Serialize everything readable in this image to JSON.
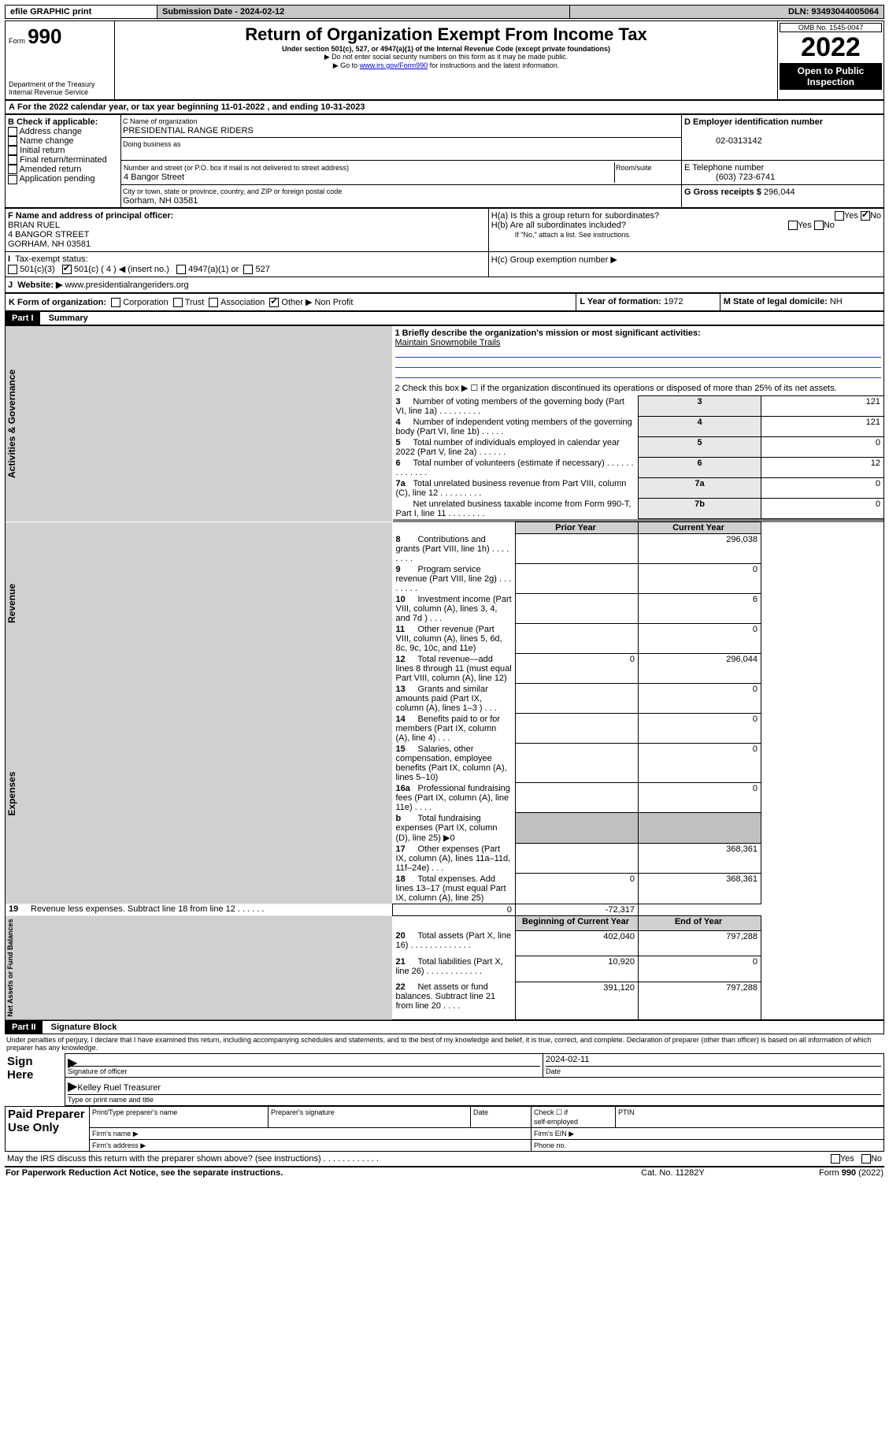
{
  "topbar": {
    "efile": "efile GRAPHIC print",
    "sub_label": "Submission Date - 2024-02-12",
    "dln": "DLN: 93493044005064"
  },
  "header": {
    "form": "Form",
    "formno": "990",
    "dept": "Department of the Treasury",
    "irs": "Internal Revenue Service",
    "title": "Return of Organization Exempt From Income Tax",
    "sub1": "Under section 501(c), 527, or 4947(a)(1) of the Internal Revenue Code (except private foundations)",
    "sub2": "▶ Do not enter social security numbers on this form as it may be made public.",
    "sub3_pre": "▶ Go to ",
    "sub3_link": "www.irs.gov/Form990",
    "sub3_post": " for instructions and the latest information.",
    "omb": "OMB No. 1545-0047",
    "year": "2022",
    "open": "Open to Public Inspection"
  },
  "A": {
    "text": "For the 2022 calendar year, or tax year beginning ",
    "begin": "11-01-2022",
    "mid": " , and ending ",
    "end": "10-31-2023"
  },
  "B": {
    "title": "B Check if applicable:",
    "opts": [
      "Address change",
      "Name change",
      "Initial return",
      "Final return/terminated",
      "Amended return",
      "Application pending"
    ]
  },
  "C": {
    "label": "C Name of organization",
    "name": "PRESIDENTIAL RANGE RIDERS",
    "dba": "Doing business as",
    "street_label": "Number and street (or P.O. box if mail is not delivered to street address)",
    "room": "Room/suite",
    "street": "4 Bangor Street",
    "city_label": "City or town, state or province, country, and ZIP or foreign postal code",
    "city": "Gorham, NH  03581"
  },
  "D": {
    "label": "D Employer identification number",
    "val": "02-0313142"
  },
  "E": {
    "label": "E Telephone number",
    "val": "(603) 723-6741"
  },
  "G": {
    "label": "G Gross receipts $",
    "val": "296,044"
  },
  "F": {
    "label": "F Name and address of principal officer:",
    "l1": "BRIAN RUEL",
    "l2": "4 BANGOR STREET",
    "l3": "GORHAM, NH  03581"
  },
  "H": {
    "a": "H(a)  Is this a group return for subordinates?",
    "b": "H(b)  Are all subordinates included?",
    "note": "If \"No,\" attach a list. See instructions.",
    "c": "H(c)  Group exemption number ▶",
    "yes": "Yes",
    "no": "No"
  },
  "I": {
    "label": "Tax-exempt status:",
    "o1": "501(c)(3)",
    "o2": "501(c) ( 4 ) ◀ (insert no.)",
    "o3": "4947(a)(1) or",
    "o4": "527"
  },
  "J": {
    "label": "Website: ▶",
    "val": "www.presidentialrangeriders.org"
  },
  "K": {
    "label": "K Form of organization:",
    "o1": "Corporation",
    "o2": "Trust",
    "o3": "Association",
    "o4": "Other ▶",
    "val": "Non Profit"
  },
  "L": {
    "label": "L Year of formation:",
    "val": "1972"
  },
  "M": {
    "label": "M State of legal domicile:",
    "val": "NH"
  },
  "part1": {
    "title": "Part I",
    "sub": "Summary"
  },
  "s1": {
    "q1": "1   Briefly describe the organization's mission or most significant activities:",
    "q1v": "Maintain Snowmobile Trails",
    "q2": "2   Check this box ▶ ☐  if the organization discontinued its operations or disposed of more than 25% of its net assets.",
    "rows": [
      {
        "n": "3",
        "t": "Number of voting members of the governing body (Part VI, line 1a)   .    .    .    .    .    .    .    .    .",
        "rn": "3",
        "v": "121"
      },
      {
        "n": "4",
        "t": "Number of independent voting members of the governing body (Part VI, line 1b)    .    .    .    .    .",
        "rn": "4",
        "v": "121"
      },
      {
        "n": "5",
        "t": "Total number of individuals employed in calendar year 2022 (Part V, line 2a)    .    .    .    .    .    .",
        "rn": "5",
        "v": "0"
      },
      {
        "n": "6",
        "t": "Total number of volunteers (estimate if necessary)    .    .    .    .    .    .    .    .    .    .    .    .    .",
        "rn": "6",
        "v": "12"
      },
      {
        "n": "7a",
        "t": "Total unrelated business revenue from Part VIII, column (C), line 12   .    .    .    .    .    .    .    .    .",
        "rn": "7a",
        "v": "0"
      },
      {
        "n": "",
        "t": "Net unrelated business taxable income from Form 990-T, Part I, line 11   .    .    .    .    .    .    .    .",
        "rn": "7b",
        "v": "0"
      }
    ]
  },
  "rev": {
    "hdr_prior": "Prior Year",
    "hdr_cur": "Current Year",
    "rows": [
      {
        "n": "8",
        "t": "Contributions and grants (Part VIII, line 1h)    .    .    .    .    .    .    .    .",
        "p": "",
        "c": "296,038"
      },
      {
        "n": "9",
        "t": "Program service revenue (Part VIII, line 2g)    .    .    .    .    .    .    .    .",
        "p": "",
        "c": "0"
      },
      {
        "n": "10",
        "t": "Investment income (Part VIII, column (A), lines 3, 4, and 7d )    .    .    .",
        "p": "",
        "c": "6"
      },
      {
        "n": "11",
        "t": "Other revenue (Part VIII, column (A), lines 5, 6d, 8c, 9c, 10c, and 11e)",
        "p": "",
        "c": "0"
      },
      {
        "n": "12",
        "t": "Total revenue—add lines 8 through 11 (must equal Part VIII, column (A), line 12)",
        "p": "0",
        "c": "296,044"
      }
    ]
  },
  "exp": {
    "rows": [
      {
        "n": "13",
        "t": "Grants and similar amounts paid (Part IX, column (A), lines 1–3 )   .    .    .",
        "p": "",
        "c": "0"
      },
      {
        "n": "14",
        "t": "Benefits paid to or for members (Part IX, column (A), line 4)   .    .    .",
        "p": "",
        "c": "0"
      },
      {
        "n": "15",
        "t": "Salaries, other compensation, employee benefits (Part IX, column (A), lines 5–10)",
        "p": "",
        "c": "0"
      },
      {
        "n": "16a",
        "t": "Professional fundraising fees (Part IX, column (A), line 11e)   .    .    .    .",
        "p": "",
        "c": "0"
      },
      {
        "n": "b",
        "t": "Total fundraising expenses (Part IX, column (D), line 25) ▶0",
        "p": null,
        "c": null
      },
      {
        "n": "17",
        "t": "Other expenses (Part IX, column (A), lines 11a–11d, 11f–24e)  .    .    .",
        "p": "",
        "c": "368,361"
      },
      {
        "n": "18",
        "t": "Total expenses. Add lines 13–17 (must equal Part IX, column (A), line 25)",
        "p": "0",
        "c": "368,361"
      },
      {
        "n": "19",
        "t": "Revenue less expenses. Subtract line 18 from line 12    .    .    .    .    .    .",
        "p": "0",
        "c": "-72,317"
      }
    ]
  },
  "net": {
    "hdr_b": "Beginning of Current Year",
    "hdr_e": "End of Year",
    "rows": [
      {
        "n": "20",
        "t": "Total assets (Part X, line 16)    .    .    .    .    .    .    .    .    .    .    .    .    .",
        "p": "402,040",
        "c": "797,288"
      },
      {
        "n": "21",
        "t": "Total liabilities (Part X, line 26)    .    .    .    .    .    .    .    .    .    .    .    .",
        "p": "10,920",
        "c": "0"
      },
      {
        "n": "22",
        "t": "Net assets or fund balances. Subtract line 21 from line 20   .    .    .    .",
        "p": "391,120",
        "c": "797,288"
      }
    ]
  },
  "part2": {
    "title": "Part II",
    "sub": "Signature Block",
    "decl": "Under penalties of perjury, I declare that I have examined this return, including accompanying schedules and statements, and to the best of my knowledge and belief, it is true, correct, and complete. Declaration of preparer (other than officer) is based on all information of which preparer has any knowledge."
  },
  "sign": {
    "here": "Sign Here",
    "sig": "Signature of officer",
    "date": "Date",
    "dateval": "2024-02-11",
    "name": "Kelley Ruel  Treasurer",
    "typelabel": "Type or print name and title"
  },
  "paid": {
    "title": "Paid Preparer Use Only",
    "c1": "Print/Type preparer's name",
    "c2": "Preparer's signature",
    "c3": "Date",
    "c4a": "Check ☐ if",
    "c4b": "self-employed",
    "c5": "PTIN",
    "fn": "Firm's name  ▶",
    "fe": "Firm's EIN ▶",
    "fa": "Firm's address ▶",
    "ph": "Phone no."
  },
  "footer": {
    "q": "May the IRS discuss this return with the preparer shown above? (see instructions)    .    .    .    .    .    .    .    .    .    .    .    .",
    "yes": "Yes",
    "no": "No",
    "pra": "For Paperwork Reduction Act Notice, see the separate instructions.",
    "cat": "Cat. No. 11282Y",
    "form": "Form 990 (2022)"
  },
  "vlabels": {
    "ag": "Activities & Governance",
    "rev": "Revenue",
    "exp": "Expenses",
    "net": "Net Assets or Fund Balances"
  }
}
